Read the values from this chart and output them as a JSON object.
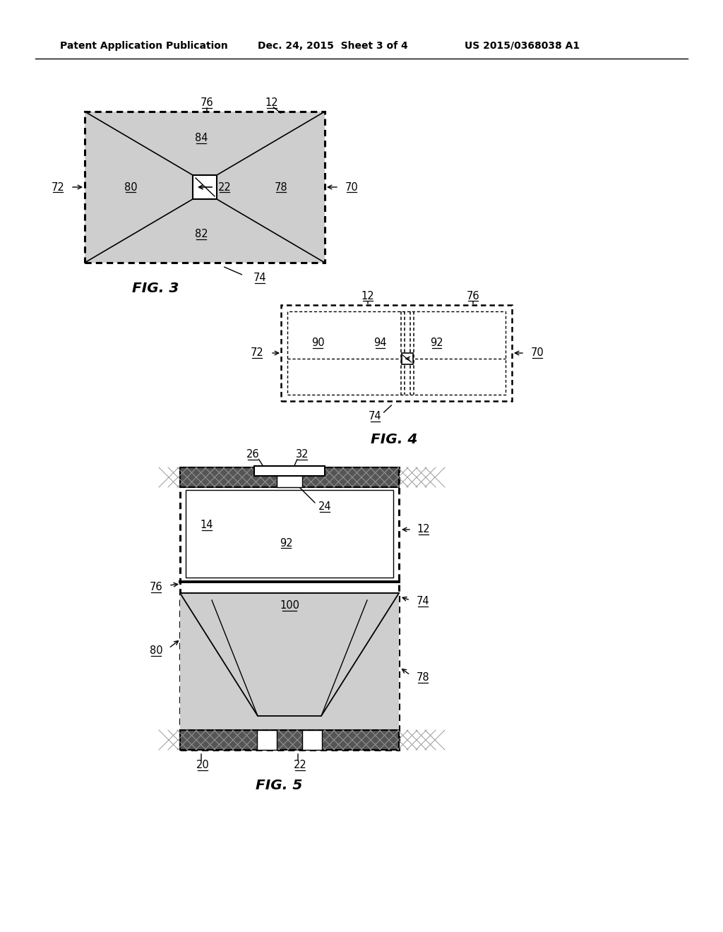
{
  "bg_color": "#ffffff",
  "header_left": "Patent Application Publication",
  "header_mid": "Dec. 24, 2015  Sheet 3 of 4",
  "header_right": "US 2015/0368038 A1",
  "fig3_caption": "FIG. 3",
  "fig4_caption": "FIG. 4",
  "fig5_caption": "FIG. 5",
  "line_color": "#000000",
  "shade_color": "#cecece",
  "dark_color": "#555555"
}
